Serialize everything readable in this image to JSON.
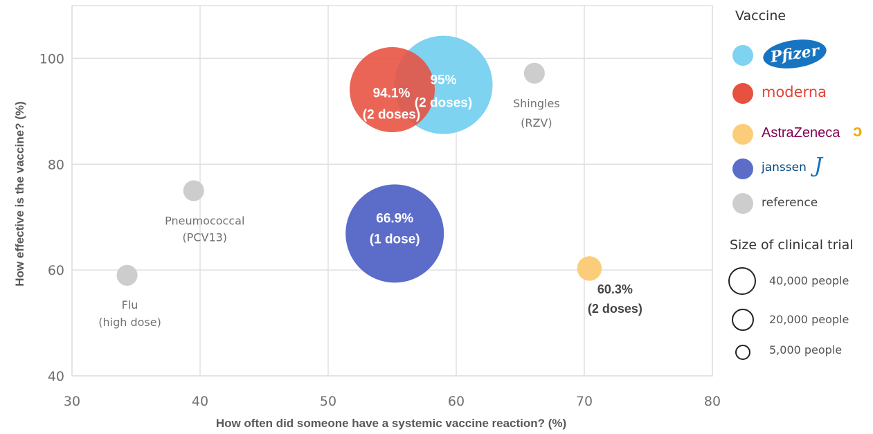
{
  "chart_data": {
    "type": "scatter",
    "subtype": "bubble",
    "title": "",
    "xlabel": "How often did someone have a systemic vaccine reaction? (%)",
    "ylabel": "How effective is the vaccine? (%)",
    "xlim": [
      30,
      80
    ],
    "ylim": [
      40,
      110
    ],
    "xticks": [
      30,
      40,
      50,
      60,
      70,
      80
    ],
    "yticks": [
      40,
      60,
      80,
      100
    ],
    "grid": true,
    "points": [
      {
        "series": "Pfizer",
        "x": 59,
        "y": 95,
        "size": 40000,
        "color": "#7dd3f0",
        "label_1": "95%",
        "label_2": "(2 doses)"
      },
      {
        "series": "moderna",
        "x": 55,
        "y": 94.1,
        "size": 30000,
        "color": "#e8503f",
        "label_1": "94.1%",
        "label_2": "(2 doses)"
      },
      {
        "series": "Janssen",
        "x": 55.2,
        "y": 66.9,
        "size": 40000,
        "color": "#5c6cc9",
        "label_1": "66.9%",
        "label_2": "(1 dose)"
      },
      {
        "series": "AstraZeneca",
        "x": 70.4,
        "y": 60.3,
        "size": 2500,
        "color": "#fbcd7a",
        "label_1": "60.3%",
        "label_2": "(2 doses)"
      },
      {
        "series": "reference",
        "x": 66.1,
        "y": 97.2,
        "size": 1800,
        "color": "#cdcdcd",
        "label_1": "Shingles",
        "label_2": "(RZV)"
      },
      {
        "series": "reference",
        "x": 39.5,
        "y": 75,
        "size": 1800,
        "color": "#cdcdcd",
        "label_1": "Pneumococcal",
        "label_2": "(PCV13)"
      },
      {
        "series": "reference",
        "x": 34.3,
        "y": 59,
        "size": 1800,
        "color": "#cdcdcd",
        "label_1": "Flu",
        "label_2": "(high dose)"
      }
    ],
    "legend": {
      "position": "right",
      "title": "Vaccine",
      "items": [
        {
          "name": "Pfizer",
          "color": "#7dd3f0"
        },
        {
          "name": "moderna",
          "color": "#e8503f"
        },
        {
          "name": "AstraZeneca",
          "color": "#fbcd7a"
        },
        {
          "name": "janssen",
          "color": "#5c6cc9"
        },
        {
          "name": "reference",
          "color": "#cdcdcd"
        }
      ],
      "size_title": "Size of clinical trial",
      "sizes": [
        {
          "value": 40000,
          "label": "40,000 people"
        },
        {
          "value": 20000,
          "label": "20,000 people"
        },
        {
          "value": 5000,
          "label": "5,000 people"
        }
      ]
    }
  }
}
